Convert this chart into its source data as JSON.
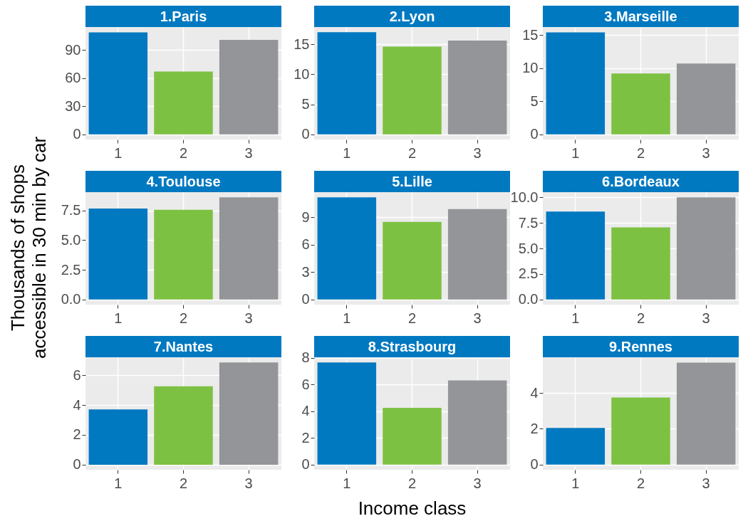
{
  "chart_data": [
    {
      "type": "bar",
      "title": "1.Paris",
      "categories": [
        "1",
        "2",
        "3"
      ],
      "values": [
        108.6,
        67,
        100.7
      ],
      "colors": [
        "#0079c1",
        "#7dc142",
        "#939598"
      ],
      "ylim": [
        -5.4,
        114.3
      ],
      "yticks": [
        0,
        30,
        60,
        90
      ],
      "grid": true
    },
    {
      "type": "bar",
      "title": "2.Lyon",
      "categories": [
        "1",
        "2",
        "3"
      ],
      "values": [
        17.0,
        14.6,
        15.6
      ],
      "colors": [
        "#0079c1",
        "#7dc142",
        "#939598"
      ],
      "ylim": [
        -0.85,
        17.85
      ],
      "yticks": [
        0,
        5,
        10,
        15
      ],
      "grid": true
    },
    {
      "type": "bar",
      "title": "3.Marseille",
      "categories": [
        "1",
        "2",
        "3"
      ],
      "values": [
        15.4,
        9.2,
        10.7
      ],
      "colors": [
        "#0079c1",
        "#7dc142",
        "#939598"
      ],
      "ylim": [
        -0.77,
        16.2
      ],
      "yticks": [
        0,
        5,
        10,
        15
      ],
      "grid": true
    },
    {
      "type": "bar",
      "title": "4.Toulouse",
      "ylabel": "Thousands of shops\naccessible in 30 min by car",
      "categories": [
        "1",
        "2",
        "3"
      ],
      "values": [
        7.65,
        7.55,
        8.6
      ],
      "colors": [
        "#0079c1",
        "#7dc142",
        "#939598"
      ],
      "ylim": [
        -0.43,
        9.03
      ],
      "yticks": [
        {
          "value": 0,
          "label": "0.0"
        },
        2.5,
        {
          "value": 5,
          "label": "5.0"
        },
        7.5
      ],
      "grid": true
    },
    {
      "type": "bar",
      "title": "5.Lille",
      "categories": [
        "1",
        "2",
        "3"
      ],
      "values": [
        11.2,
        8.5,
        9.9
      ],
      "colors": [
        "#0079c1",
        "#7dc142",
        "#939598"
      ],
      "ylim": [
        -0.56,
        11.76
      ],
      "yticks": [
        0,
        3,
        6,
        9
      ],
      "grid": true
    },
    {
      "type": "bar",
      "title": "6.Bordeaux",
      "categories": [
        "1",
        "2",
        "3"
      ],
      "values": [
        8.6,
        7.05,
        10.0
      ],
      "colors": [
        "#0079c1",
        "#7dc142",
        "#939598"
      ],
      "ylim": [
        -0.5,
        10.5
      ],
      "yticks": [
        {
          "value": 0,
          "label": "0.0"
        },
        2.5,
        {
          "value": 5,
          "label": "5.0"
        },
        7.5,
        {
          "value": 10,
          "label": "10.0"
        }
      ],
      "grid": true
    },
    {
      "type": "bar",
      "title": "7.Nantes",
      "categories": [
        "1",
        "2",
        "3"
      ],
      "values": [
        3.7,
        5.25,
        6.85
      ],
      "colors": [
        "#0079c1",
        "#7dc142",
        "#939598"
      ],
      "ylim": [
        -0.34,
        7.2
      ],
      "yticks": [
        0,
        2,
        4,
        6
      ],
      "grid": true
    },
    {
      "type": "bar",
      "title": "8.Strasbourg",
      "xlabel": "Income class",
      "categories": [
        "1",
        "2",
        "3"
      ],
      "values": [
        7.65,
        4.25,
        6.3
      ],
      "colors": [
        "#0079c1",
        "#7dc142",
        "#939598"
      ],
      "ylim": [
        -0.38,
        8.03
      ],
      "yticks": [
        0,
        2,
        4,
        6,
        8
      ],
      "grid": true
    },
    {
      "type": "bar",
      "title": "9.Rennes",
      "categories": [
        "1",
        "2",
        "3"
      ],
      "values": [
        2.05,
        3.75,
        5.7
      ],
      "colors": [
        "#0079c1",
        "#7dc142",
        "#939598"
      ],
      "ylim": [
        -0.29,
        6.0
      ],
      "yticks": [
        0,
        2,
        4
      ],
      "grid": true
    }
  ]
}
